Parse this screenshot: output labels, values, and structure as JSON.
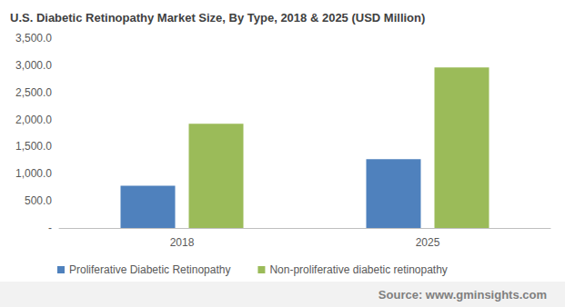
{
  "chart_data": {
    "type": "bar",
    "title": "U.S. Diabetic Retinopathy Market Size, By Type, 2018 & 2025 (USD Million)",
    "categories": [
      "2018",
      "2025"
    ],
    "series": [
      {
        "name": "Proliferative Diabetic Retinopathy",
        "color": "#4f81bd",
        "values": [
          780,
          1270
        ]
      },
      {
        "name": "Non-proliferative diabetic retinopathy",
        "color": "#9bbb59",
        "values": [
          1920,
          2960
        ]
      }
    ],
    "ylim": [
      0,
      3500
    ],
    "yticks": [
      {
        "value": 0,
        "label": "-"
      },
      {
        "value": 500,
        "label": "500.0"
      },
      {
        "value": 1000,
        "label": "1,000.0"
      },
      {
        "value": 1500,
        "label": "1,500.0"
      },
      {
        "value": 2000,
        "label": "2,000.0"
      },
      {
        "value": 2500,
        "label": "2,500.0"
      },
      {
        "value": 3000,
        "label": "3,000.0"
      },
      {
        "value": 3500,
        "label": "3,500.0"
      }
    ],
    "grid": false,
    "legend": "bottom",
    "annotation": "Source: www.gminsights.com"
  }
}
